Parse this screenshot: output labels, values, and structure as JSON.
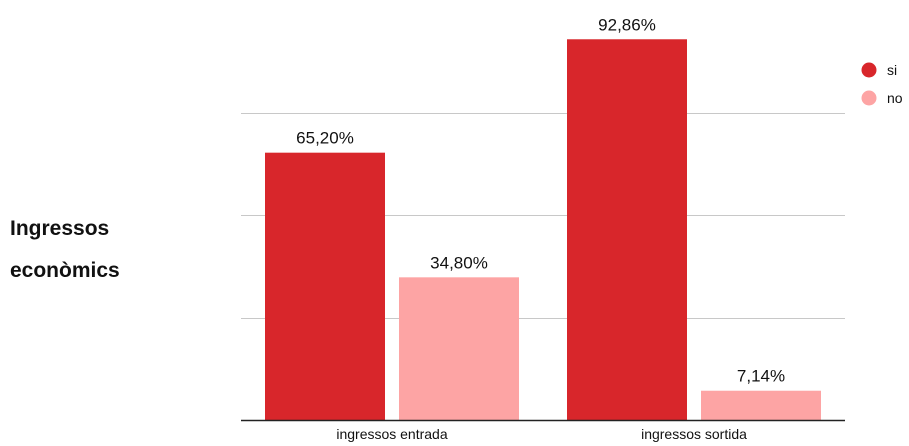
{
  "title_lines": [
    "Ingressos",
    "econòmics"
  ],
  "chart_data": {
    "type": "bar",
    "categories": [
      "ingressos entrada",
      "ingressos sortida"
    ],
    "series": [
      {
        "name": "si",
        "values": [
          65.2,
          92.86
        ],
        "labels": [
          "65,20%",
          "92,86%"
        ],
        "color": "#d8262b"
      },
      {
        "name": "no",
        "values": [
          34.8,
          7.14
        ],
        "labels": [
          "34,80%",
          "7,14%"
        ],
        "color": "#fda4a4"
      }
    ],
    "ylim": [
      0,
      100
    ],
    "grid": true,
    "legend": "top-right"
  }
}
